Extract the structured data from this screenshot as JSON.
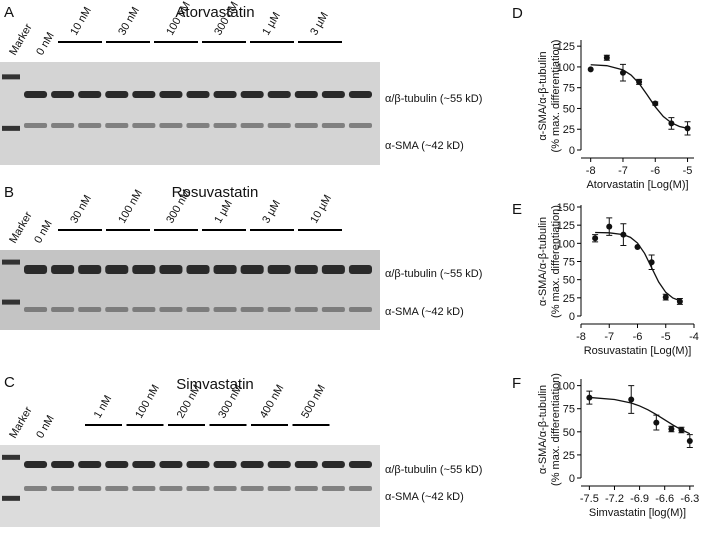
{
  "blots": [
    {
      "letter": "A",
      "title": "Atorvastatin",
      "marker": "Marker",
      "control": "0 nM",
      "groups": [
        "10 nM",
        "30 nM",
        "100 nM",
        "300 nM",
        "1 µM",
        "3 µM"
      ],
      "bands": [
        "α/β-tubulin (~55 kD)",
        "α-SMA (~42 kD)"
      ]
    },
    {
      "letter": "B",
      "title": "Rosuvastatin",
      "marker": "Marker",
      "control": "0 nM",
      "groups": [
        "30 nM",
        "100 nM",
        "300 nM",
        "1 µM",
        "3 µM",
        "10 µM"
      ],
      "bands": [
        "α/β-tubulin (~55 kD)",
        "α-SMA (~42 kD)"
      ]
    },
    {
      "letter": "C",
      "title": "Simvastatin",
      "marker": "Marker",
      "control": "0 nM",
      "groups": [
        "1 nM",
        "100 nM",
        "200 nM",
        "300 nM",
        "400 nM",
        "500 nM"
      ],
      "bands": [
        "α/β-tubulin (~55 kD)",
        "α-SMA (~42 kD)"
      ]
    }
  ],
  "chart_data": [
    {
      "type": "scatter",
      "letter": "D",
      "xlabel": "Atorvastatin [Log(M)]",
      "ylabel": [
        "α-SMA/α-β-tubulin",
        "(% max. differentiation)"
      ],
      "x": [
        -8,
        -7.5,
        -7,
        -6.5,
        -6,
        -5.5,
        -5
      ],
      "values": [
        97,
        111,
        93,
        82,
        56,
        32,
        26
      ],
      "errors": [
        0,
        3,
        10,
        3,
        2,
        7,
        8
      ],
      "fit": {
        "x": [
          -8,
          -7.5,
          -7,
          -6.75,
          -6.5,
          -6.25,
          -6,
          -5.75,
          -5.5,
          -5.25,
          -5
        ],
        "values": [
          102.6,
          101.5,
          96.4,
          90.2,
          80.1,
          66.4,
          52,
          40.3,
          32.7,
          28.3,
          26.1
        ]
      },
      "color": "#111111",
      "xlim": [
        -8.3,
        -4.8
      ],
      "xticks": [
        -8,
        -7,
        -6,
        -5
      ],
      "ylim": [
        0,
        130
      ],
      "yticks": [
        0,
        25,
        50,
        75,
        100,
        125
      ]
    },
    {
      "type": "scatter",
      "letter": "E",
      "xlabel": "Rosuvastatin [Log(M)]",
      "ylabel": [
        "α-SMA/α-β-tubulin",
        "(% max. differentiation)"
      ],
      "x": [
        -7.5,
        -7,
        -6.5,
        -6,
        -5.5,
        -5,
        -4.5
      ],
      "values": [
        107,
        123,
        112,
        95,
        74,
        26,
        20
      ],
      "errors": [
        5,
        12,
        15,
        0,
        10,
        4,
        4
      ],
      "fit": {
        "x": [
          -7.5,
          -7,
          -6.5,
          -6.25,
          -6,
          -5.75,
          -5.5,
          -5.25,
          -5,
          -4.75,
          -4.5
        ],
        "values": [
          114.9,
          114.5,
          112,
          108.2,
          100.4,
          86.3,
          66.5,
          46.8,
          32.6,
          24.8,
          21
        ]
      },
      "color": "#111111",
      "xlim": [
        -8,
        -4
      ],
      "xticks": [
        -8,
        -7,
        -6,
        -5,
        -4
      ],
      "ylim": [
        0,
        150
      ],
      "yticks": [
        0,
        25,
        50,
        75,
        100,
        125,
        150
      ]
    },
    {
      "type": "scatter",
      "letter": "F",
      "xlabel": "Simvastatin [log(M)]",
      "ylabel": [
        "α-SMA/α-β-tubulin",
        "(% max. differentiation)"
      ],
      "x": [
        -7.5,
        -7,
        -6.7,
        -6.52,
        -6.4,
        -6.3
      ],
      "values": [
        87,
        85,
        60,
        53,
        52,
        40
      ],
      "errors": [
        7,
        15,
        8,
        3,
        3,
        7
      ],
      "fit": {
        "x": [
          -7.5,
          -7.2,
          -7,
          -6.9,
          -6.8,
          -6.7,
          -6.6,
          -6.5,
          -6.4,
          -6.3
        ],
        "values": [
          87.2,
          85,
          81.2,
          78,
          73.8,
          68.7,
          63,
          57.3,
          52.2,
          48
        ]
      },
      "color": "#111111",
      "xlim": [
        -7.6,
        -6.25
      ],
      "xticks": [
        -7.5,
        -7.2,
        -6.9,
        -6.6,
        -6.3
      ],
      "ylim": [
        0,
        105
      ],
      "yticks": [
        0,
        25,
        50,
        75,
        100
      ]
    }
  ]
}
